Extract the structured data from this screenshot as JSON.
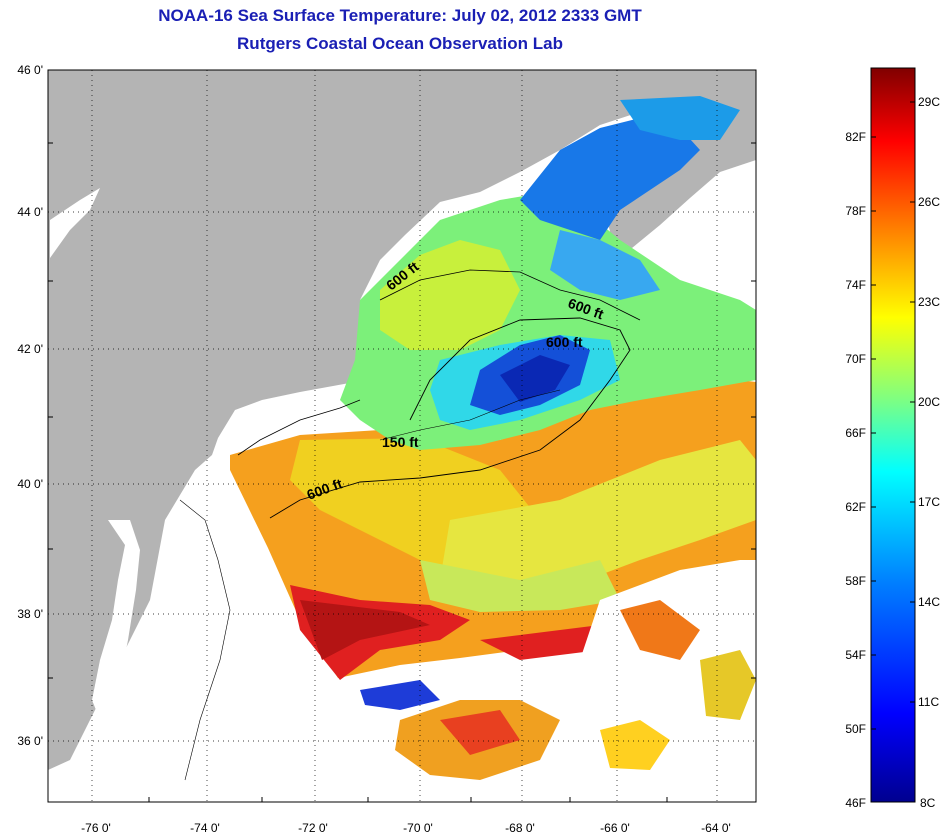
{
  "header": {
    "title": "NOAA-16 Sea Surface Temperature:  July 02, 2012 2333 GMT",
    "subtitle": "Rutgers Coastal Ocean Observation Lab"
  },
  "map": {
    "lat_labels": [
      "46 0'",
      "44 0'",
      "42 0'",
      "40 0'",
      "38 0'",
      "36 0'"
    ],
    "lon_labels": [
      "-76 0'",
      "-74 0'",
      "-72 0'",
      "-70 0'",
      "-68 0'",
      "-66 0'",
      "-64 0'"
    ],
    "contour_labels": [
      "600 ft",
      "600 ft",
      "600 ft",
      "150 ft",
      "600 ft"
    ],
    "land_color": "#b4b4b4",
    "nodata_color": "#ffffff"
  },
  "colorbar": {
    "fahrenheit_labels": [
      "82F",
      "78F",
      "74F",
      "70F",
      "66F",
      "62F",
      "58F",
      "54F",
      "50F",
      "46F"
    ],
    "celsius_labels": [
      "29C",
      "26C",
      "23C",
      "20C",
      "17C",
      "14C",
      "11C",
      "8C"
    ],
    "colors": [
      "#00008f",
      "#0000ff",
      "#0080ff",
      "#00ffff",
      "#80ff80",
      "#ffff00",
      "#ff8000",
      "#ff0000",
      "#800000"
    ]
  }
}
